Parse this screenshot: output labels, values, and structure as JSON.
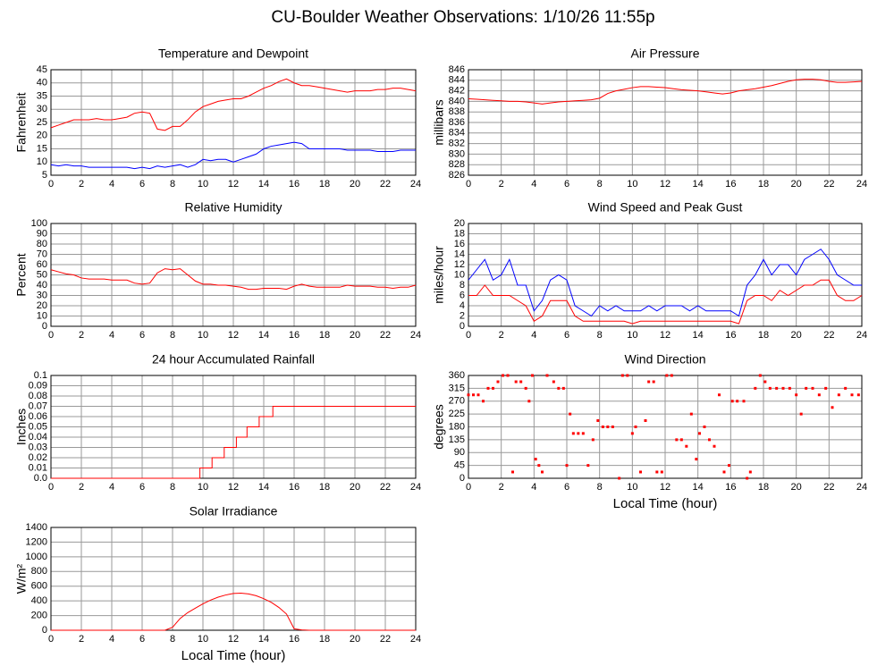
{
  "title": "CU-Boulder Weather Observations: 1/10/26 11:55p",
  "chart_data": [
    {
      "type": "line",
      "title": "Temperature and Dewpoint",
      "y_label": "Fahrenheit",
      "x": [
        0,
        0.5,
        1,
        1.5,
        2,
        2.5,
        3,
        3.5,
        4,
        4.5,
        5,
        5.5,
        6,
        6.5,
        7,
        7.5,
        8,
        8.5,
        9,
        9.5,
        10,
        10.5,
        11,
        11.5,
        12,
        12.5,
        13,
        13.5,
        14,
        14.5,
        15,
        15.5,
        16,
        16.5,
        17,
        17.5,
        18,
        18.5,
        19,
        19.5,
        20,
        20.5,
        21,
        21.5,
        22,
        22.5,
        23,
        23.5,
        24
      ],
      "series": [
        {
          "name": "Temperature",
          "color": "#ff0000",
          "values": [
            23,
            24,
            25,
            26,
            26,
            26,
            26.5,
            26,
            26,
            26.5,
            27,
            28.5,
            29,
            28.5,
            22.5,
            22,
            23.5,
            23.5,
            26,
            29,
            31,
            32,
            33,
            33.5,
            34,
            34,
            35,
            36.5,
            38,
            39,
            40.5,
            41.5,
            40,
            39,
            39,
            38.5,
            38,
            37.5,
            37,
            36.5,
            37,
            37,
            37,
            37.5,
            37.5,
            38,
            38,
            37.5,
            37
          ]
        },
        {
          "name": "Dewpoint",
          "color": "#0000ff",
          "values": [
            9,
            8.5,
            9,
            8.5,
            8.5,
            8,
            8,
            8,
            8,
            8,
            8,
            7.5,
            8,
            7.5,
            8.5,
            8,
            8.5,
            9,
            8,
            9,
            11,
            10.5,
            11,
            11,
            10,
            11,
            12,
            13,
            15,
            16,
            16.5,
            17,
            17.5,
            17,
            15,
            15,
            15,
            15,
            15,
            14.5,
            14.5,
            14.5,
            14.5,
            14,
            14,
            14,
            14.5,
            14.5,
            14.5
          ]
        }
      ],
      "xlim": [
        0,
        24
      ],
      "xticks": [
        0,
        2,
        4,
        6,
        8,
        10,
        12,
        14,
        16,
        18,
        20,
        22,
        24
      ],
      "ylim": [
        5,
        45
      ],
      "yticks": [
        5,
        10,
        15,
        20,
        25,
        30,
        35,
        40,
        45
      ],
      "grid": true
    },
    {
      "type": "line",
      "title": "Air Pressure",
      "y_label": "millibars",
      "x": [
        0,
        0.5,
        1,
        1.5,
        2,
        2.5,
        3,
        3.5,
        4,
        4.5,
        5,
        5.5,
        6,
        6.5,
        7,
        7.5,
        8,
        8.5,
        9,
        9.5,
        10,
        10.5,
        11,
        11.5,
        12,
        12.5,
        13,
        13.5,
        14,
        14.5,
        15,
        15.5,
        16,
        16.5,
        17,
        17.5,
        18,
        18.5,
        19,
        19.5,
        20,
        20.5,
        21,
        21.5,
        22,
        22.5,
        23,
        23.5,
        24
      ],
      "series": [
        {
          "name": "Pressure",
          "color": "#ff0000",
          "values": [
            840.5,
            840.4,
            840.3,
            840.2,
            840.1,
            840,
            840,
            839.9,
            839.7,
            839.5,
            839.7,
            839.9,
            840,
            840.1,
            840.2,
            840.3,
            840.6,
            841.5,
            842,
            842.3,
            842.6,
            842.8,
            842.8,
            842.7,
            842.6,
            842.4,
            842.2,
            842.1,
            842,
            841.8,
            841.6,
            841.4,
            841.6,
            842,
            842.2,
            842.4,
            842.7,
            843,
            843.4,
            843.8,
            844.1,
            844.2,
            844.2,
            844.1,
            843.8,
            843.6,
            843.6,
            843.7,
            843.8
          ]
        }
      ],
      "xlim": [
        0,
        24
      ],
      "xticks": [
        0,
        2,
        4,
        6,
        8,
        10,
        12,
        14,
        16,
        18,
        20,
        22,
        24
      ],
      "ylim": [
        826,
        846
      ],
      "yticks": [
        826,
        828,
        830,
        832,
        834,
        836,
        838,
        840,
        842,
        844,
        846
      ],
      "grid": true
    },
    {
      "type": "line",
      "title": "Relative Humidity",
      "y_label": "Percent",
      "x": [
        0,
        0.5,
        1,
        1.5,
        2,
        2.5,
        3,
        3.5,
        4,
        4.5,
        5,
        5.5,
        6,
        6.5,
        7,
        7.5,
        8,
        8.5,
        9,
        9.5,
        10,
        10.5,
        11,
        11.5,
        12,
        12.5,
        13,
        13.5,
        14,
        14.5,
        15,
        15.5,
        16,
        16.5,
        17,
        17.5,
        18,
        18.5,
        19,
        19.5,
        20,
        20.5,
        21,
        21.5,
        22,
        22.5,
        23,
        23.5,
        24
      ],
      "series": [
        {
          "name": "Humidity",
          "color": "#ff0000",
          "values": [
            55,
            53,
            51,
            50,
            47,
            46,
            46,
            46,
            45,
            45,
            45,
            42,
            41,
            42,
            52,
            56,
            55,
            56,
            50,
            44,
            41,
            41,
            40,
            40,
            39,
            38,
            36,
            36,
            37,
            37,
            37,
            36,
            39,
            41,
            39,
            38,
            38,
            38,
            38,
            40,
            39,
            39,
            39,
            38,
            38,
            37,
            38,
            38,
            40
          ]
        }
      ],
      "xlim": [
        0,
        24
      ],
      "xticks": [
        0,
        2,
        4,
        6,
        8,
        10,
        12,
        14,
        16,
        18,
        20,
        22,
        24
      ],
      "ylim": [
        0,
        100
      ],
      "yticks": [
        0,
        10,
        20,
        30,
        40,
        50,
        60,
        70,
        80,
        90,
        100
      ],
      "grid": true
    },
    {
      "type": "line",
      "title": "Wind Speed and Peak Gust",
      "y_label": "miles/hour",
      "x": [
        0,
        0.5,
        1,
        1.5,
        2,
        2.5,
        3,
        3.5,
        4,
        4.5,
        5,
        5.5,
        6,
        6.5,
        7,
        7.5,
        8,
        8.5,
        9,
        9.5,
        10,
        10.5,
        11,
        11.5,
        12,
        12.5,
        13,
        13.5,
        14,
        14.5,
        15,
        15.5,
        16,
        16.5,
        17,
        17.5,
        18,
        18.5,
        19,
        19.5,
        20,
        20.5,
        21,
        21.5,
        22,
        22.5,
        23,
        23.5,
        24
      ],
      "series": [
        {
          "name": "Peak Gust",
          "color": "#0000ff",
          "values": [
            9,
            11,
            13,
            9,
            10,
            13,
            8,
            8,
            3,
            5,
            9,
            10,
            9,
            4,
            3,
            2,
            4,
            3,
            4,
            3,
            3,
            3,
            4,
            3,
            4,
            4,
            4,
            3,
            4,
            3,
            3,
            3,
            3,
            2,
            8,
            10,
            13,
            10,
            12,
            12,
            10,
            13,
            14,
            15,
            13,
            10,
            9,
            8,
            8
          ]
        },
        {
          "name": "Wind Speed",
          "color": "#ff0000",
          "values": [
            6,
            6,
            8,
            6,
            6,
            6,
            5,
            4,
            1,
            2,
            5,
            5,
            5,
            2,
            1,
            1,
            1,
            1,
            1,
            1,
            0.5,
            1,
            1,
            1,
            1,
            1,
            1,
            1,
            1,
            1,
            1,
            1,
            1,
            0.5,
            5,
            6,
            6,
            5,
            7,
            6,
            7,
            8,
            8,
            9,
            9,
            6,
            5,
            5,
            6
          ]
        }
      ],
      "xlim": [
        0,
        24
      ],
      "xticks": [
        0,
        2,
        4,
        6,
        8,
        10,
        12,
        14,
        16,
        18,
        20,
        22,
        24
      ],
      "ylim": [
        0,
        20
      ],
      "yticks": [
        0,
        2,
        4,
        6,
        8,
        10,
        12,
        14,
        16,
        18,
        20
      ],
      "grid": true
    },
    {
      "type": "line",
      "title": "24 hour Accumulated Rainfall",
      "y_label": "Inches",
      "x": [
        0,
        9.8,
        9.8,
        10.6,
        10.6,
        11.4,
        11.4,
        12.2,
        12.2,
        12.9,
        12.9,
        13.7,
        13.7,
        14.6,
        14.6,
        24
      ],
      "series": [
        {
          "name": "Rainfall",
          "color": "#ff0000",
          "values": [
            0,
            0,
            0.01,
            0.01,
            0.02,
            0.02,
            0.03,
            0.03,
            0.04,
            0.04,
            0.05,
            0.05,
            0.06,
            0.06,
            0.07,
            0.07
          ]
        }
      ],
      "xlim": [
        0,
        24
      ],
      "xticks": [
        0,
        2,
        4,
        6,
        8,
        10,
        12,
        14,
        16,
        18,
        20,
        22,
        24
      ],
      "ylim": [
        0,
        0.1
      ],
      "yticks": [
        {
          "value": 0,
          "label": "0.0"
        },
        0.01,
        0.02,
        0.03,
        0.04,
        0.05,
        0.06,
        0.07,
        0.08,
        0.09,
        0.1
      ],
      "grid": true
    },
    {
      "type": "scatter",
      "title": "Wind Direction",
      "y_label": "degrees",
      "x_label": "Local Time (hour)",
      "x": [
        0,
        0.3,
        0.6,
        0.9,
        1.2,
        1.5,
        1.8,
        2.1,
        2.4,
        2.7,
        2.9,
        3.2,
        3.5,
        3.7,
        3.9,
        4.1,
        4.3,
        4.5,
        4.8,
        5.2,
        5.5,
        5.8,
        6,
        6.2,
        6.4,
        6.7,
        7,
        7.3,
        7.6,
        7.9,
        8.2,
        8.5,
        8.8,
        9.2,
        9.4,
        9.7,
        10,
        10.2,
        10.5,
        10.8,
        11,
        11.3,
        11.5,
        11.8,
        12.1,
        12.4,
        12.7,
        13,
        13.3,
        13.6,
        13.9,
        14.1,
        14.4,
        14.7,
        15,
        15.3,
        15.6,
        15.9,
        16.1,
        16.4,
        16.8,
        17,
        17.2,
        17.5,
        17.8,
        18.1,
        18.4,
        18.8,
        19.2,
        19.6,
        20,
        20.3,
        20.6,
        21,
        21.4,
        21.8,
        22.2,
        22.6,
        23,
        23.4,
        23.8
      ],
      "series": [
        {
          "name": "Direction",
          "color": "#ff0000",
          "values": [
            292,
            292,
            292,
            270,
            315,
            315,
            338,
            360,
            360,
            22,
            338,
            338,
            315,
            270,
            360,
            67,
            45,
            22,
            360,
            338,
            315,
            315,
            45,
            225,
            157,
            157,
            157,
            45,
            135,
            202,
            180,
            180,
            180,
            0,
            360,
            360,
            157,
            180,
            22,
            202,
            338,
            338,
            22,
            22,
            360,
            360,
            135,
            135,
            112,
            225,
            67,
            157,
            180,
            135,
            112,
            292,
            22,
            45,
            270,
            270,
            270,
            0,
            22,
            315,
            360,
            338,
            315,
            315,
            315,
            315,
            292,
            225,
            315,
            315,
            292,
            315,
            248,
            292,
            315,
            292,
            292
          ]
        }
      ],
      "xlim": [
        0,
        24
      ],
      "xticks": [
        0,
        2,
        4,
        6,
        8,
        10,
        12,
        14,
        16,
        18,
        20,
        22,
        24
      ],
      "ylim": [
        0,
        360
      ],
      "yticks": [
        0,
        45,
        90,
        135,
        180,
        225,
        270,
        315,
        360
      ],
      "grid": true
    },
    {
      "type": "line",
      "title": "Solar Irradiance",
      "y_label": "W/m²",
      "x_label": "Local Time (hour)",
      "x": [
        0,
        0.5,
        1,
        1.5,
        2,
        2.5,
        3,
        3.5,
        4,
        4.5,
        5,
        5.5,
        6,
        6.5,
        7,
        7.5,
        8,
        8.5,
        9,
        9.5,
        10,
        10.5,
        11,
        11.5,
        12,
        12.5,
        13,
        13.5,
        14,
        14.5,
        15,
        15.5,
        16,
        16.5,
        17,
        17.5,
        18,
        18.5,
        19,
        19.5,
        20,
        20.5,
        21,
        21.5,
        22,
        22.5,
        23,
        23.5,
        24
      ],
      "series": [
        {
          "name": "Irradiance",
          "color": "#ff0000",
          "values": [
            0,
            0,
            0,
            0,
            0,
            0,
            0,
            0,
            0,
            0,
            0,
            0,
            0,
            0,
            0,
            0,
            40,
            160,
            240,
            300,
            360,
            410,
            450,
            480,
            500,
            505,
            495,
            470,
            430,
            380,
            310,
            220,
            20,
            5,
            0,
            0,
            0,
            0,
            0,
            0,
            0,
            0,
            0,
            0,
            0,
            0,
            0,
            0,
            0
          ]
        }
      ],
      "xlim": [
        0,
        24
      ],
      "xticks": [
        0,
        2,
        4,
        6,
        8,
        10,
        12,
        14,
        16,
        18,
        20,
        22,
        24
      ],
      "ylim": [
        0,
        1400
      ],
      "yticks": [
        0,
        200,
        400,
        600,
        800,
        1000,
        1200,
        1400
      ],
      "grid": true
    }
  ]
}
